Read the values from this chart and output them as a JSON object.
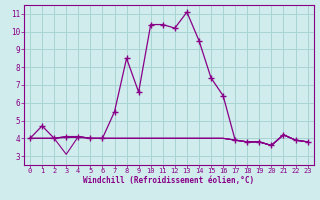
{
  "xlabel": "Windchill (Refroidissement éolien,°C)",
  "background_color": "#d0ecec",
  "grid_color": "#a8d4d4",
  "line_color": "#880088",
  "x_values": [
    0,
    1,
    2,
    3,
    4,
    5,
    6,
    7,
    8,
    9,
    10,
    11,
    12,
    13,
    14,
    15,
    16,
    17,
    18,
    19,
    20,
    21,
    22,
    23
  ],
  "y_main": [
    4.0,
    4.7,
    4.0,
    4.1,
    4.1,
    4.0,
    4.0,
    5.5,
    8.5,
    6.6,
    10.4,
    10.4,
    10.2,
    11.1,
    9.5,
    7.4,
    6.4,
    3.9,
    3.8,
    3.8,
    3.6,
    4.2,
    3.9,
    3.8
  ],
  "y_flat1": [
    4.0,
    4.0,
    4.0,
    4.1,
    4.1,
    4.0,
    4.0,
    4.0,
    4.0,
    4.0,
    4.0,
    4.0,
    4.0,
    4.0,
    4.0,
    4.0,
    4.0,
    3.9,
    3.8,
    3.8,
    3.6,
    4.2,
    3.9,
    3.8
  ],
  "y_flat2": [
    4.0,
    4.0,
    4.0,
    4.05,
    4.05,
    4.0,
    4.0,
    4.0,
    4.0,
    4.0,
    4.0,
    4.0,
    4.0,
    4.0,
    4.0,
    4.0,
    4.0,
    3.9,
    3.8,
    3.8,
    3.6,
    4.2,
    3.9,
    3.8
  ],
  "y_dip": [
    4.0,
    4.0,
    4.0,
    3.1,
    4.1,
    4.0,
    4.0,
    4.0,
    4.0,
    4.0,
    4.0,
    4.0,
    4.0,
    4.0,
    4.0,
    4.0,
    4.0,
    3.9,
    3.8,
    3.8,
    3.6,
    4.2,
    3.9,
    3.8
  ],
  "xlim": [
    -0.5,
    23.5
  ],
  "ylim": [
    2.5,
    11.5
  ],
  "yticks": [
    3,
    4,
    5,
    6,
    7,
    8,
    9,
    10,
    11
  ],
  "xticks": [
    0,
    1,
    2,
    3,
    4,
    5,
    6,
    7,
    8,
    9,
    10,
    11,
    12,
    13,
    14,
    15,
    16,
    17,
    18,
    19,
    20,
    21,
    22,
    23
  ]
}
